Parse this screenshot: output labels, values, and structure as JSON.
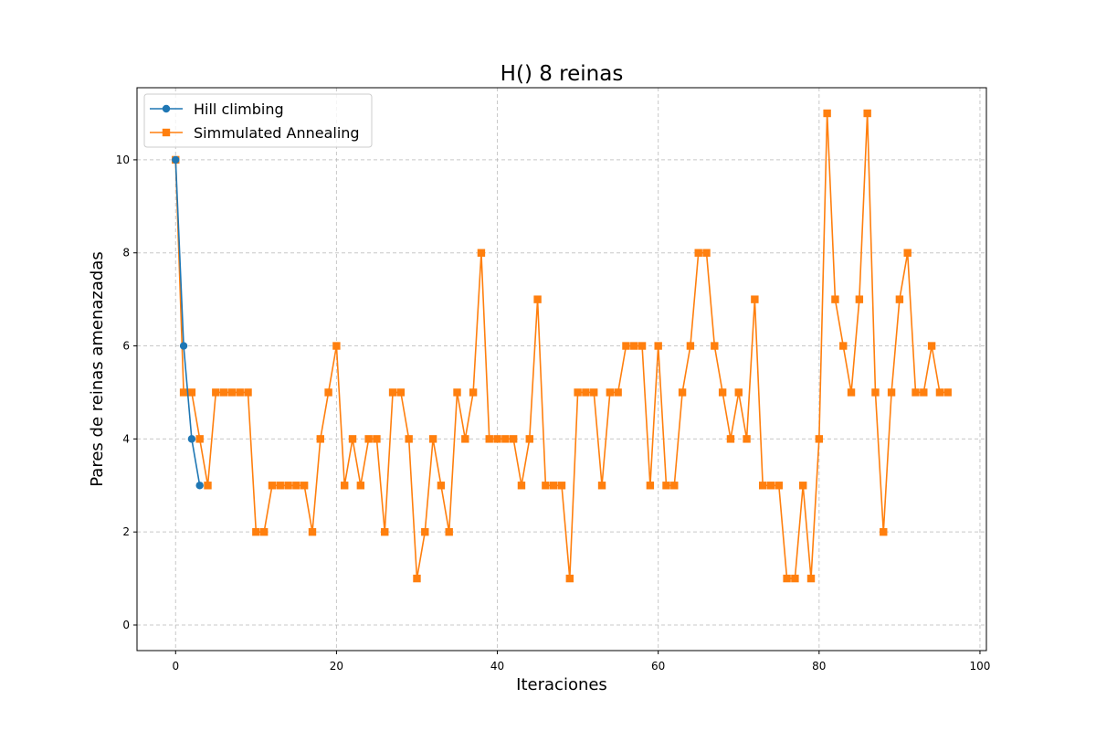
{
  "chart_data": {
    "type": "line",
    "title": "H() 8 reinas",
    "xlabel": "Iteraciones",
    "ylabel": "Pares de reinas amenazadas",
    "xlim": [
      -4.8,
      100.8
    ],
    "ylim": [
      -0.55,
      11.55
    ],
    "xticks": [
      0,
      20,
      40,
      60,
      80,
      100
    ],
    "yticks": [
      0,
      2,
      4,
      6,
      8,
      10
    ],
    "grid": true,
    "legend_position": "top-left",
    "series": [
      {
        "name": "Hill climbing",
        "color": "#1f77b4",
        "marker": "circle",
        "x": [
          0,
          1,
          2,
          3
        ],
        "values": [
          10,
          6,
          4,
          3
        ]
      },
      {
        "name": "Simmulated Annealing",
        "color": "#ff7f0e",
        "marker": "square",
        "x": [
          0,
          1,
          2,
          3,
          4,
          5,
          6,
          7,
          8,
          9,
          10,
          11,
          12,
          13,
          14,
          15,
          16,
          17,
          18,
          19,
          20,
          21,
          22,
          23,
          24,
          25,
          26,
          27,
          28,
          29,
          30,
          31,
          32,
          33,
          34,
          35,
          36,
          37,
          38,
          39,
          40,
          41,
          42,
          43,
          44,
          45,
          46,
          47,
          48,
          49,
          50,
          51,
          52,
          53,
          54,
          55,
          56,
          57,
          58,
          59,
          60,
          61,
          62,
          63,
          64,
          65,
          66,
          67,
          68,
          69,
          70,
          71,
          72,
          73,
          74,
          75,
          76,
          77,
          78,
          79,
          80,
          81,
          82,
          83,
          84,
          85,
          86,
          87,
          88,
          89,
          90,
          91,
          92,
          93,
          94,
          95,
          96
        ],
        "values": [
          10,
          5,
          5,
          4,
          3,
          5,
          5,
          5,
          5,
          5,
          2,
          2,
          3,
          3,
          3,
          3,
          3,
          2,
          4,
          5,
          6,
          3,
          4,
          3,
          4,
          4,
          2,
          5,
          5,
          4,
          1,
          2,
          4,
          3,
          2,
          5,
          4,
          5,
          8,
          4,
          4,
          4,
          4,
          3,
          4,
          7,
          3,
          3,
          3,
          1,
          5,
          5,
          5,
          3,
          5,
          5,
          6,
          6,
          6,
          3,
          6,
          3,
          3,
          5,
          6,
          8,
          8,
          6,
          5,
          4,
          5,
          4,
          7,
          3,
          3,
          3,
          1,
          1,
          3,
          1,
          4,
          11,
          7,
          6,
          5,
          7,
          11,
          5,
          2,
          5,
          7,
          8,
          5,
          5,
          6,
          5,
          5
        ]
      }
    ]
  }
}
